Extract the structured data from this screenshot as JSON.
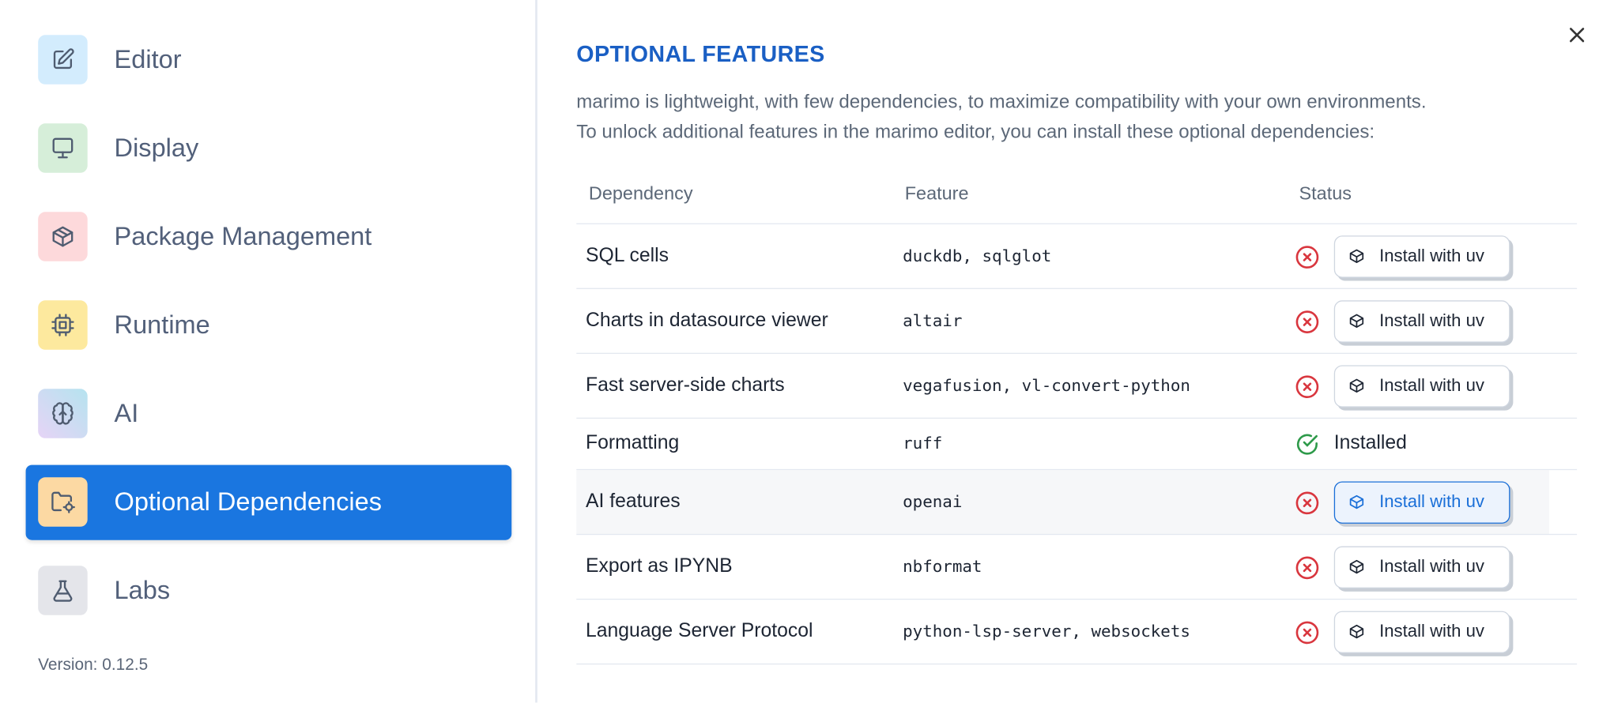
{
  "sidebar": {
    "items": [
      {
        "label": "Editor",
        "icon": "pencil-square-icon",
        "color": "#d3ecfd"
      },
      {
        "label": "Display",
        "icon": "monitor-icon",
        "color": "#d6eed9"
      },
      {
        "label": "Package Management",
        "icon": "package-icon",
        "color": "#fdd9db"
      },
      {
        "label": "Runtime",
        "icon": "cpu-icon",
        "color": "#fde99e"
      },
      {
        "label": "AI",
        "icon": "brain-icon",
        "color": "#d9dcf3"
      },
      {
        "label": "Optional Dependencies",
        "icon": "folder-cog-icon",
        "color": "#fcd9a3",
        "active": true
      },
      {
        "label": "Labs",
        "icon": "flask-icon",
        "color": "#e4e5ea"
      }
    ],
    "version": "Version: 0.12.5"
  },
  "main": {
    "title": "OPTIONAL FEATURES",
    "description": [
      "marimo is lightweight, with few dependencies, to maximize compatibility with your own environments.",
      "To unlock additional features in the marimo editor, you can install these optional dependencies:"
    ],
    "table": {
      "headers": [
        "Dependency",
        "Feature",
        "Status"
      ],
      "rows": [
        {
          "dependency": "SQL cells",
          "feature": "duckdb, sqlglot",
          "status": "missing",
          "action": "Install with uv"
        },
        {
          "dependency": "Charts in datasource viewer",
          "feature": "altair",
          "status": "missing",
          "action": "Install with uv"
        },
        {
          "dependency": "Fast server-side charts",
          "feature": "vegafusion, vl-convert-python",
          "status": "missing",
          "action": "Install with uv"
        },
        {
          "dependency": "Formatting",
          "feature": "ruff",
          "status": "installed",
          "status_label": "Installed"
        },
        {
          "dependency": "AI features",
          "feature": "openai",
          "status": "missing",
          "action": "Install with uv",
          "hovered": true
        },
        {
          "dependency": "Export as IPYNB",
          "feature": "nbformat",
          "status": "missing",
          "action": "Install with uv"
        },
        {
          "dependency": "Language Server Protocol",
          "feature": "python-lsp-server, websockets",
          "status": "missing",
          "action": "Install with uv"
        }
      ]
    }
  },
  "colors": {
    "accent": "#1a76e0",
    "title": "#1a5fc4",
    "error": "#d9363e",
    "success": "#2e9a4a"
  }
}
